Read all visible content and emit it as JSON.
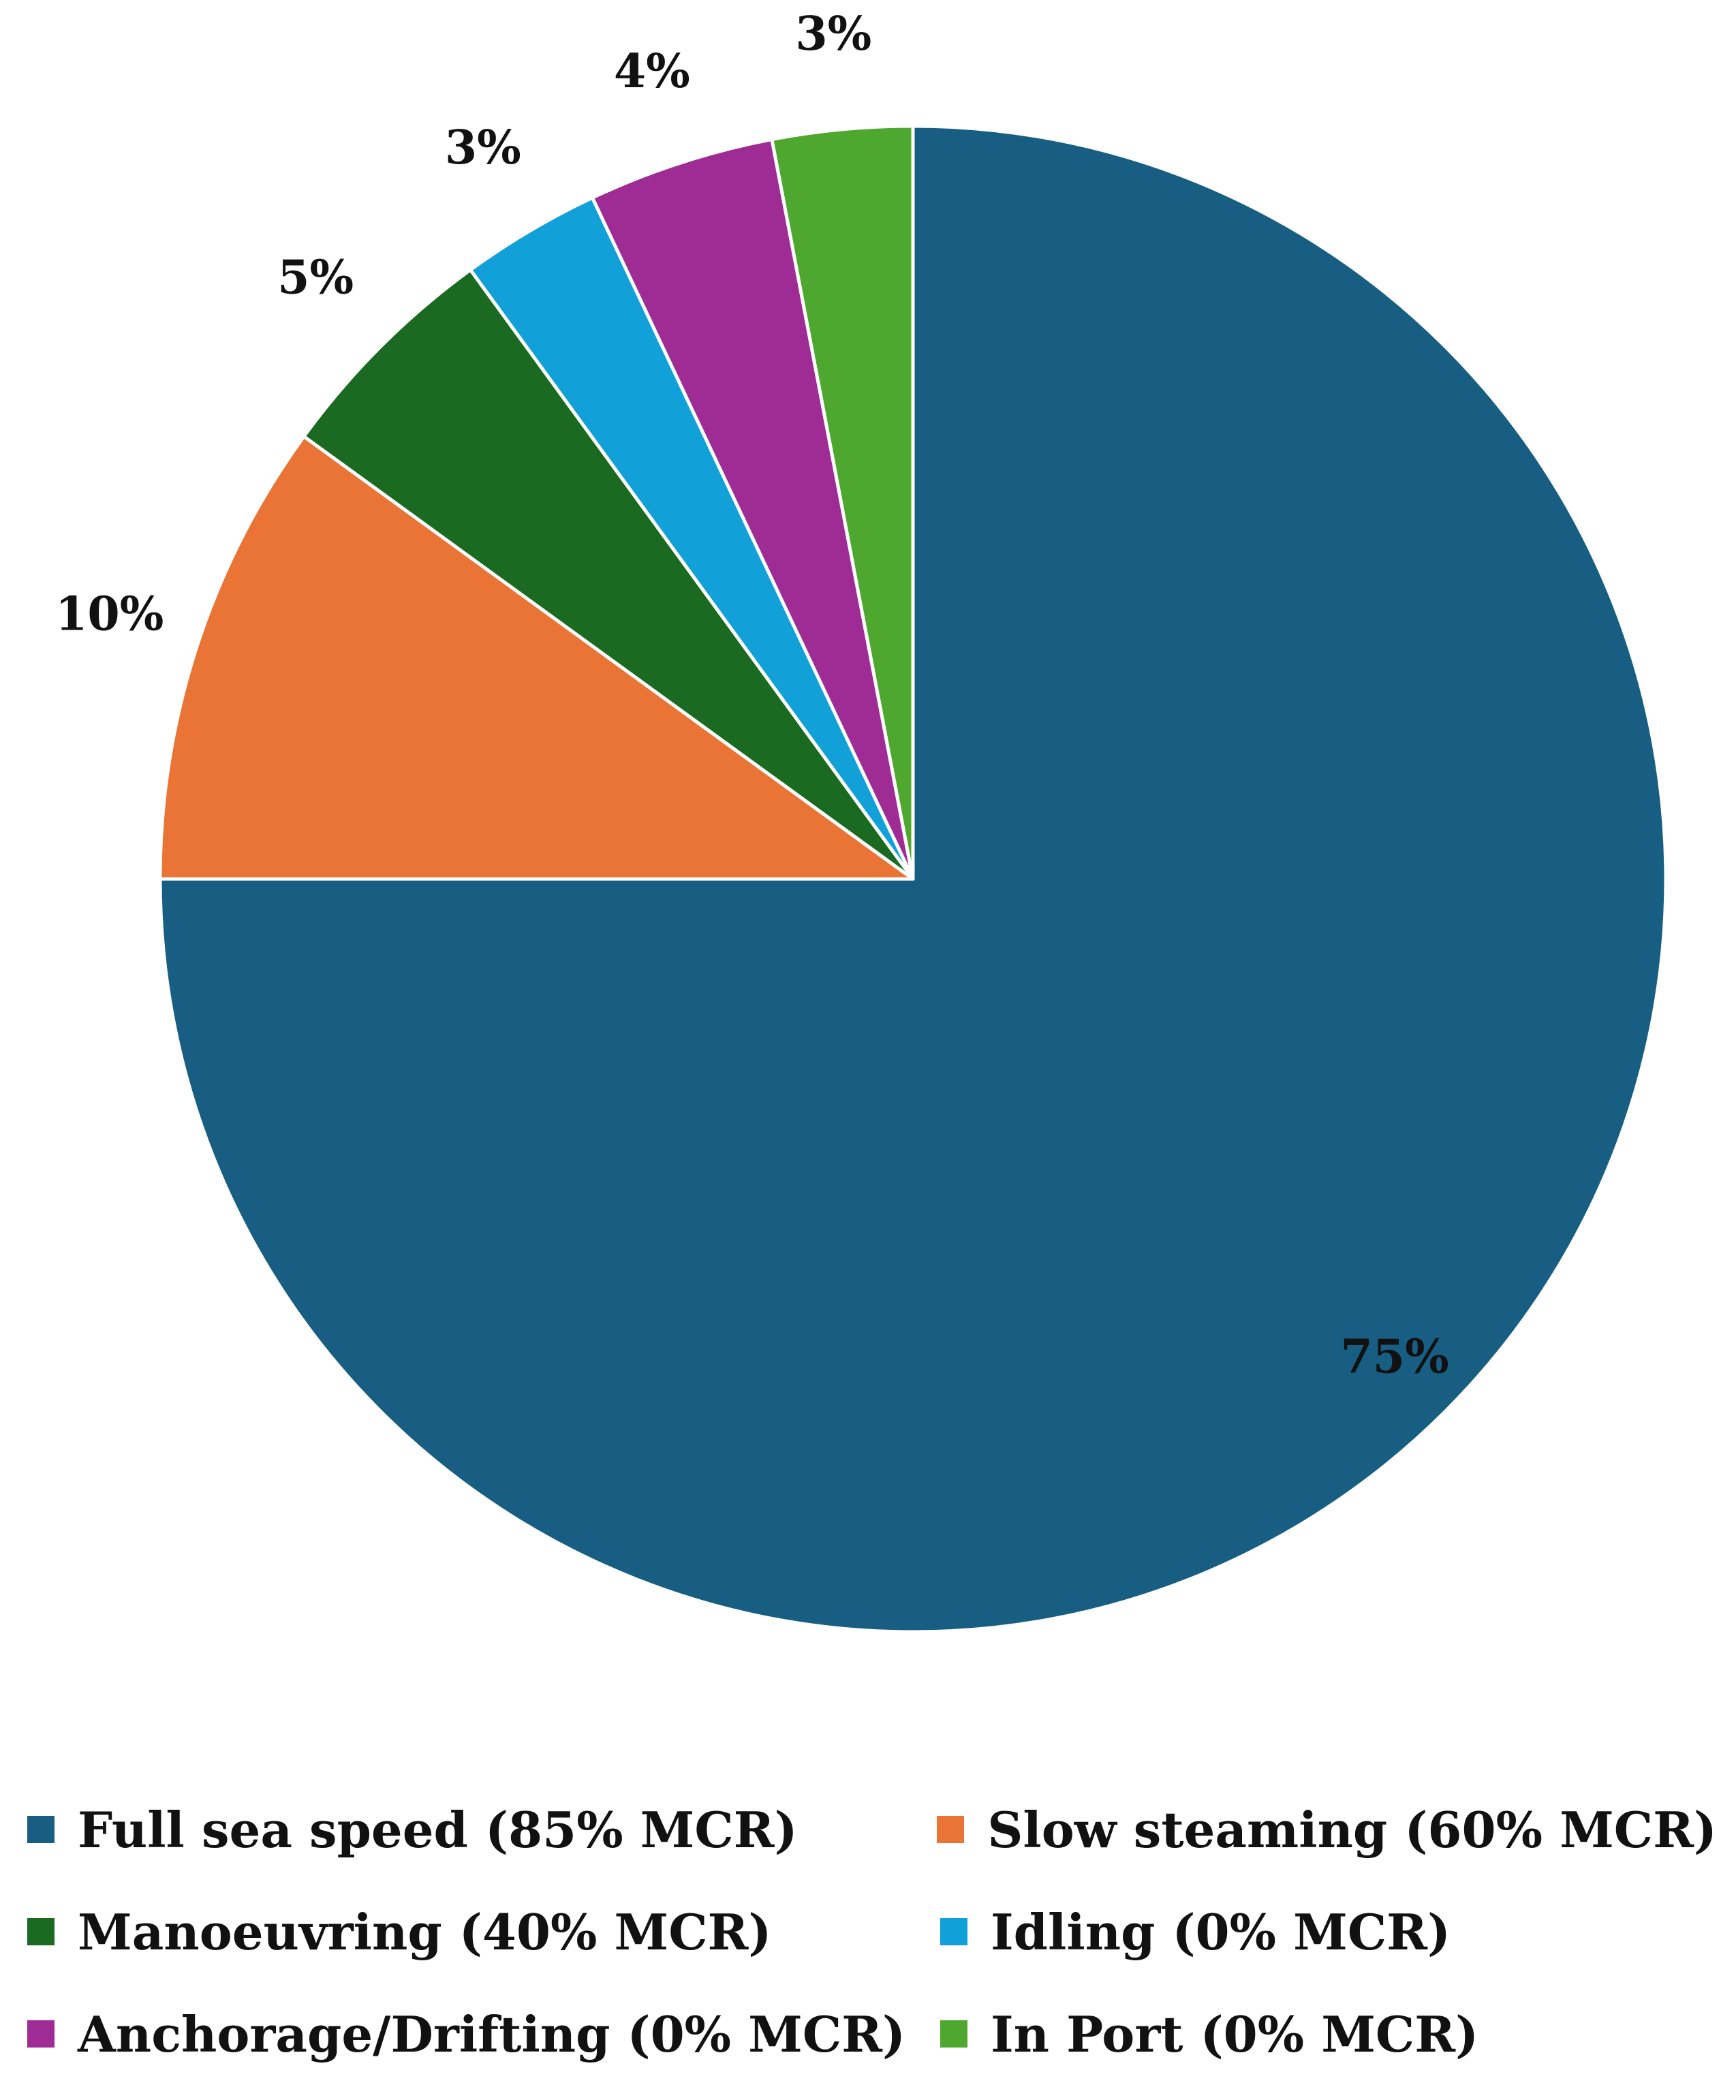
{
  "chart_data": {
    "type": "pie",
    "title": "",
    "start_angle_deg": 0,
    "direction": "clockwise",
    "slices": [
      {
        "name": "Full sea speed (85% MCR)",
        "value": 75,
        "label": "75%",
        "color": "#175E82"
      },
      {
        "name": "Slow steaming (60% MCR)",
        "value": 10,
        "label": "10%",
        "color": "#E97435"
      },
      {
        "name": "Manoeuvring (40% MCR)",
        "value": 5,
        "label": "5%",
        "color": "#1B6A22"
      },
      {
        "name": "Idling (0% MCR)",
        "value": 3,
        "label": "3%",
        "color": "#12A0D9"
      },
      {
        "name": "Anchorage/Drifting (0% MCR)",
        "value": 4,
        "label": "4%",
        "color": "#9E2C94"
      },
      {
        "name": "In Port (0% MCR)",
        "value": 3,
        "label": "3%",
        "color": "#4EA72E"
      }
    ],
    "legend_position": "bottom"
  }
}
